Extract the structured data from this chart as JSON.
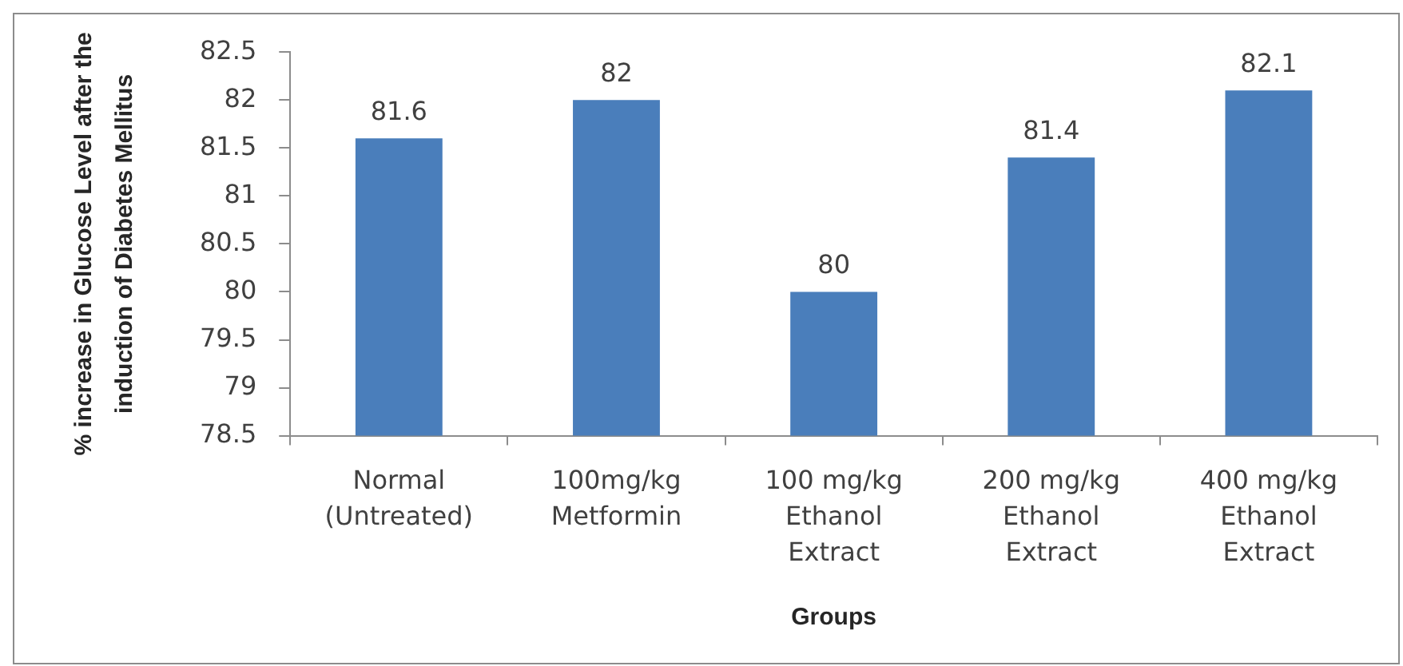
{
  "chart_data": {
    "type": "bar",
    "xlabel": "Groups",
    "ylabel": "% increase in Glucose Level after the\ninduction of Diabetes Mellitus",
    "categories": [
      "Normal\n(Untreated)",
      "100mg/kg\nMetformin",
      "100 mg/kg\nEthanol\nExtract",
      "200 mg/kg\nEthanol\nExtract",
      "400 mg/kg\nEthanol\nExtract"
    ],
    "values": [
      81.6,
      82,
      80,
      81.4,
      82.1
    ],
    "color": "#4a7ebb",
    "ylim": [
      78.5,
      82.5
    ],
    "yticks": [
      78.5,
      79,
      79.5,
      80,
      80.5,
      81,
      81.5,
      82,
      82.5
    ],
    "data_labels": true
  }
}
